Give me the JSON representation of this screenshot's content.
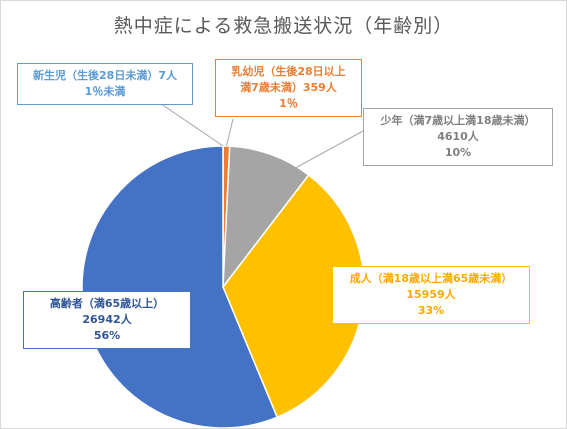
{
  "chart_data": {
    "type": "pie",
    "title": "熱中症による救急搬送状況（年齢別）",
    "slices": [
      {
        "key": "newborn",
        "lines": [
          "新生児（生後28日未満）7人",
          "1％未満"
        ],
        "value": 7,
        "color": "#5b9bd5"
      },
      {
        "key": "infant",
        "lines": [
          "乳幼児（生後28日以上",
          "満7歳未満）359人",
          "1％"
        ],
        "value": 359,
        "color": "#ed7d31"
      },
      {
        "key": "youth",
        "lines": [
          "少年（満7歳以上満18歳未満）",
          "4610人",
          "10%"
        ],
        "value": 4610,
        "color": "#a5a5a5"
      },
      {
        "key": "adult",
        "lines": [
          "成人（満18歳以上満65歳未満）",
          "15959人",
          "33%"
        ],
        "value": 15959,
        "color": "#ffc000"
      },
      {
        "key": "elderly",
        "lines": [
          "高齢者（満65歳以上）",
          "26942人",
          "56%"
        ],
        "value": 26942,
        "color": "#4472c4"
      }
    ]
  }
}
